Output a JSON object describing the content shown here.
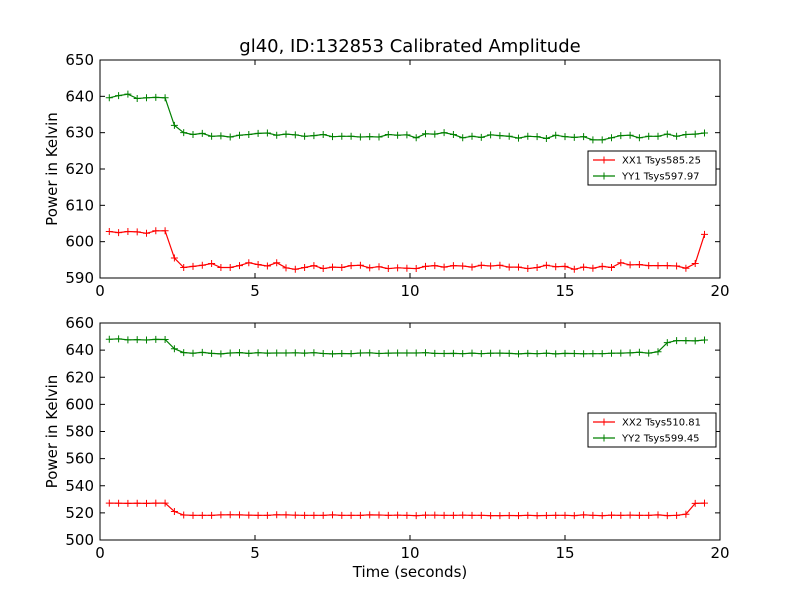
{
  "chart_data": [
    {
      "type": "line",
      "title": "gl40, ID:132853 Calibrated Amplitude",
      "xlabel": "",
      "ylabel": "Power in Kelvin",
      "xlim": [
        0,
        20
      ],
      "ylim": [
        590,
        650
      ],
      "xticks": [
        "0",
        "5",
        "10",
        "15",
        "20"
      ],
      "yticks": [
        "590",
        "600",
        "610",
        "620",
        "630",
        "640",
        "650"
      ],
      "legend_position": "right",
      "grid": false,
      "x": [
        0.3,
        0.6,
        0.9,
        1.2,
        1.5,
        1.8,
        2.1,
        2.4,
        2.7,
        3.0,
        3.3,
        3.6,
        3.9,
        4.2,
        4.5,
        4.8,
        5.1,
        5.4,
        5.7,
        6.0,
        6.3,
        6.6,
        6.9,
        7.2,
        7.5,
        7.8,
        8.1,
        8.4,
        8.7,
        9.0,
        9.3,
        9.6,
        9.9,
        10.2,
        10.5,
        10.8,
        11.1,
        11.4,
        11.7,
        12.0,
        12.3,
        12.6,
        12.9,
        13.2,
        13.5,
        13.8,
        14.1,
        14.4,
        14.7,
        15.0,
        15.3,
        15.6,
        15.9,
        16.2,
        16.5,
        16.8,
        17.1,
        17.4,
        17.7,
        18.0,
        18.3,
        18.6,
        18.9,
        19.2,
        19.5
      ],
      "series": [
        {
          "name": "XX1 Tsys585.25",
          "color": "#ff0000",
          "values": [
            602.8,
            602.5,
            602.8,
            602.7,
            602.3,
            603.0,
            603.0,
            595.5,
            592.9,
            593.2,
            593.5,
            594.0,
            592.9,
            592.9,
            593.4,
            594.2,
            593.7,
            593.3,
            594.2,
            592.8,
            592.4,
            592.9,
            593.4,
            592.6,
            593.0,
            592.9,
            593.4,
            593.5,
            592.8,
            593.1,
            592.6,
            592.8,
            592.7,
            592.6,
            593.2,
            593.4,
            593.0,
            593.4,
            593.3,
            593.0,
            593.5,
            593.3,
            593.5,
            593.0,
            593.0,
            592.6,
            592.9,
            593.5,
            593.1,
            593.2,
            592.4,
            593.0,
            592.7,
            593.2,
            592.9,
            594.2,
            593.6,
            593.7,
            593.4,
            593.4,
            593.4,
            593.3,
            592.7,
            594.0,
            602.0
          ]
        },
        {
          "name": "YY1 Tsys597.97",
          "color": "#008000",
          "values": [
            639.6,
            640.2,
            640.6,
            639.4,
            639.6,
            639.7,
            639.6,
            632.0,
            630.0,
            629.5,
            629.8,
            629.0,
            629.1,
            628.8,
            629.3,
            629.5,
            629.8,
            629.9,
            629.3,
            629.6,
            629.4,
            629.0,
            629.2,
            629.5,
            628.9,
            629.0,
            629.0,
            628.8,
            628.9,
            628.8,
            629.5,
            629.3,
            629.4,
            628.6,
            629.7,
            629.6,
            630.0,
            629.5,
            628.6,
            629.0,
            628.7,
            629.4,
            629.2,
            629.0,
            628.5,
            629.0,
            628.9,
            628.4,
            629.3,
            628.9,
            628.7,
            628.9,
            628.0,
            628.0,
            628.6,
            629.2,
            629.3,
            628.6,
            629.0,
            629.0,
            629.6,
            629.0,
            629.5,
            629.6,
            629.9
          ]
        }
      ]
    },
    {
      "type": "line",
      "title": "",
      "xlabel": "Time (seconds)",
      "ylabel": "Power in Kelvin",
      "xlim": [
        0,
        20
      ],
      "ylim": [
        500,
        660
      ],
      "xticks": [
        "0",
        "5",
        "10",
        "15",
        "20"
      ],
      "yticks": [
        "500",
        "520",
        "540",
        "560",
        "580",
        "600",
        "620",
        "640",
        "660"
      ],
      "legend_position": "right",
      "grid": false,
      "x": [
        0.3,
        0.6,
        0.9,
        1.2,
        1.5,
        1.8,
        2.1,
        2.4,
        2.7,
        3.0,
        3.3,
        3.6,
        3.9,
        4.2,
        4.5,
        4.8,
        5.1,
        5.4,
        5.7,
        6.0,
        6.3,
        6.6,
        6.9,
        7.2,
        7.5,
        7.8,
        8.1,
        8.4,
        8.7,
        9.0,
        9.3,
        9.6,
        9.9,
        10.2,
        10.5,
        10.8,
        11.1,
        11.4,
        11.7,
        12.0,
        12.3,
        12.6,
        12.9,
        13.2,
        13.5,
        13.8,
        14.1,
        14.4,
        14.7,
        15.0,
        15.3,
        15.6,
        15.9,
        16.2,
        16.5,
        16.8,
        17.1,
        17.4,
        17.7,
        18.0,
        18.3,
        18.6,
        18.9,
        19.2,
        19.5
      ],
      "series": [
        {
          "name": "XX2 Tsys510.81",
          "color": "#ff0000",
          "values": [
            527.2,
            527.1,
            527.0,
            527.1,
            527.0,
            527.2,
            527.2,
            521.0,
            518.4,
            518.2,
            518.2,
            518.2,
            518.5,
            518.6,
            518.5,
            518.3,
            518.2,
            518.2,
            518.6,
            518.5,
            518.3,
            518.2,
            518.2,
            518.2,
            518.5,
            518.2,
            518.2,
            518.2,
            518.5,
            518.4,
            518.2,
            518.3,
            518.2,
            518.0,
            518.3,
            518.3,
            518.2,
            518.2,
            518.3,
            518.2,
            518.2,
            518.0,
            518.0,
            518.1,
            518.0,
            518.2,
            518.0,
            518.1,
            518.2,
            518.2,
            518.0,
            518.5,
            518.2,
            518.0,
            518.3,
            518.2,
            518.3,
            518.2,
            518.2,
            518.5,
            518.0,
            518.2,
            519.0,
            527.0,
            527.2
          ]
        },
        {
          "name": "YY2 Tsys599.45",
          "color": "#008000",
          "values": [
            648.0,
            648.3,
            647.6,
            647.7,
            647.5,
            647.9,
            647.8,
            641.0,
            638.2,
            637.7,
            638.3,
            637.6,
            637.2,
            637.9,
            638.2,
            637.6,
            638.1,
            637.8,
            637.9,
            637.9,
            638.0,
            637.8,
            638.1,
            637.5,
            637.2,
            637.5,
            637.4,
            637.9,
            638.0,
            637.5,
            637.8,
            637.9,
            637.9,
            637.9,
            638.1,
            637.6,
            637.5,
            637.6,
            637.4,
            637.8,
            637.4,
            637.7,
            637.8,
            637.6,
            637.2,
            637.6,
            637.4,
            637.7,
            637.2,
            637.6,
            637.5,
            637.3,
            637.4,
            637.4,
            637.7,
            637.8,
            638.0,
            638.4,
            637.8,
            638.8,
            645.5,
            647.0,
            647.0,
            646.8,
            647.5
          ]
        }
      ]
    }
  ]
}
